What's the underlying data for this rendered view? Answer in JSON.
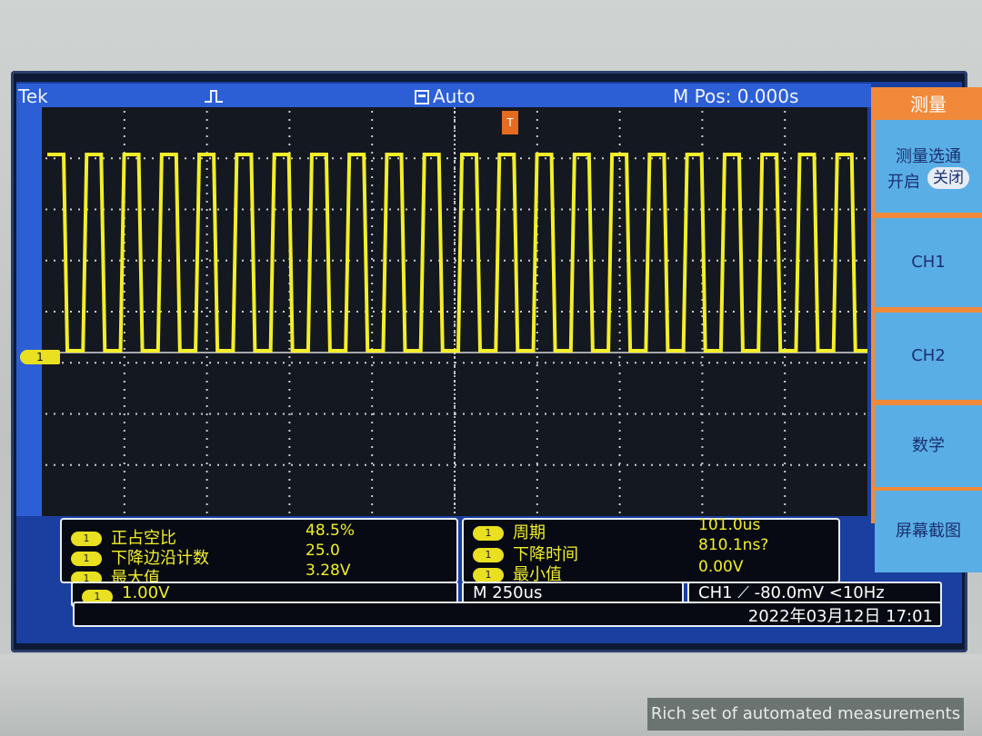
{
  "topbar": {
    "brand": "Tek",
    "trigger_icon": "rising-edge-icon",
    "mode_icon": "acquire-icon",
    "mode": "Auto",
    "m_pos": "M Pos: 0.000s"
  },
  "graticule": {
    "trigger_marker": "T",
    "channel_marker": "1"
  },
  "menu": {
    "title": "测量",
    "items": [
      {
        "label": "测量选通",
        "toggle_on": "开启",
        "toggle_off": "关闭"
      },
      {
        "label": "CH1"
      },
      {
        "label": "CH2"
      },
      {
        "label": "数学"
      },
      {
        "label": "屏幕截图"
      }
    ]
  },
  "measurements": {
    "left": [
      {
        "name": "正占空比",
        "value": "48.5%"
      },
      {
        "name": "下降边沿计数",
        "value": "25.0"
      },
      {
        "name": "最大值",
        "value": "3.28V"
      }
    ],
    "right": [
      {
        "name": "周期",
        "value": "101.0us"
      },
      {
        "name": "下降时间",
        "value": "810.1ns?"
      },
      {
        "name": "最小值",
        "value": "0.00V"
      }
    ],
    "channel_badge": "1"
  },
  "status": {
    "ch_scale": "1.00V",
    "timebase": "M 250us",
    "trigger": "CH1 ⟋ -80.0mV  <10Hz",
    "datetime": "2022年03月12日 17:01"
  },
  "waveform": {
    "color": "#f2ee2a",
    "cycles": 22,
    "duty": 0.485
  },
  "caption": "Rich set of automated measurements"
}
